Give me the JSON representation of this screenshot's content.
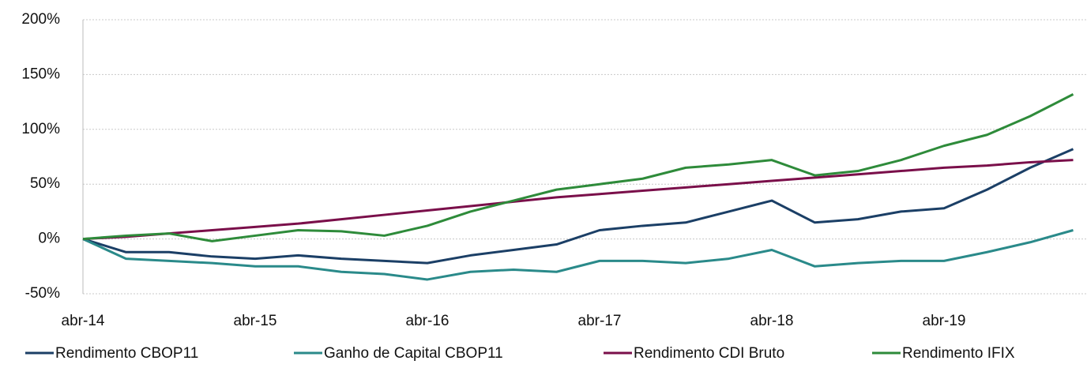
{
  "chart_data": {
    "type": "line",
    "categories": [
      "abr-14",
      null,
      null,
      null,
      "abr-15",
      null,
      null,
      null,
      "abr-16",
      null,
      null,
      null,
      "abr-17",
      null,
      null,
      null,
      "abr-18",
      null,
      null,
      null,
      "abr-19",
      null,
      null,
      null
    ],
    "series": [
      {
        "name": "Rendimento CBOP11",
        "color": "#1b3f66",
        "values": [
          0,
          -12,
          -12,
          -16,
          -18,
          -15,
          -18,
          -20,
          -22,
          -15,
          -10,
          -5,
          8,
          12,
          15,
          25,
          35,
          15,
          18,
          25,
          28,
          45,
          65,
          82
        ]
      },
      {
        "name": "Ganho de Capital CBOP11",
        "color": "#2a8a8a",
        "values": [
          0,
          -18,
          -20,
          -22,
          -25,
          -25,
          -30,
          -32,
          -37,
          -30,
          -28,
          -30,
          -20,
          -20,
          -22,
          -18,
          -10,
          -25,
          -22,
          -20,
          -20,
          -12,
          -3,
          8
        ]
      },
      {
        "name": "Rendimento CDI Bruto",
        "color": "#7a0f4a",
        "values": [
          0,
          2,
          5,
          8,
          11,
          14,
          18,
          22,
          26,
          30,
          34,
          38,
          41,
          44,
          47,
          50,
          53,
          56,
          59,
          62,
          65,
          67,
          70,
          72
        ]
      },
      {
        "name": "Rendimento IFIX",
        "color": "#2e8b3a",
        "values": [
          0,
          3,
          5,
          -2,
          3,
          8,
          7,
          3,
          12,
          25,
          35,
          45,
          50,
          55,
          65,
          68,
          72,
          58,
          62,
          72,
          85,
          95,
          112,
          132
        ]
      }
    ],
    "ylim": [
      -50,
      200
    ],
    "yticks": [
      {
        "value": -50,
        "label": "-50%"
      },
      {
        "value": 0,
        "label": "0%"
      },
      {
        "value": 50,
        "label": "50%"
      },
      {
        "value": 100,
        "label": "100%"
      },
      {
        "value": 150,
        "label": "150%"
      },
      {
        "value": 200,
        "label": "200%"
      }
    ],
    "grid": true,
    "legend": "bottom"
  }
}
